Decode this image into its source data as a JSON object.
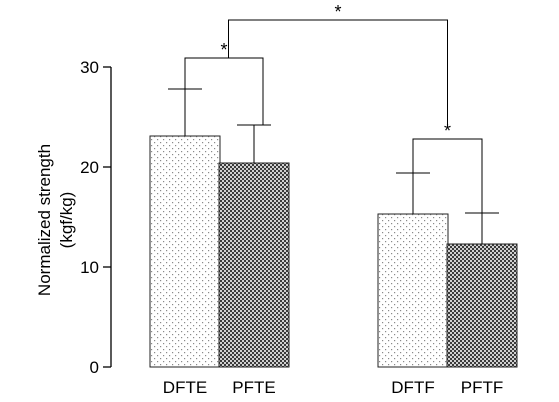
{
  "chart_data": {
    "type": "bar",
    "title": "",
    "ylabel_line1": "Normalized strength",
    "ylabel_line2": "(kgf/kg)",
    "xlabel": "",
    "ylim": [
      0,
      30
    ],
    "yticks": [
      0,
      10,
      20,
      30
    ],
    "grid": false,
    "categories": [
      "DFTE",
      "PFTE",
      "DFTF",
      "PFTF"
    ],
    "values": [
      23.1,
      20.4,
      15.3,
      12.3
    ],
    "errors": [
      4.7,
      3.8,
      4.1,
      3.1
    ],
    "fills": [
      "light-dotted",
      "dark-checkered",
      "light-dotted",
      "dark-checkered"
    ],
    "significance": [
      {
        "from": 0,
        "to": 1,
        "label": "*"
      },
      {
        "from": 2,
        "to": 3,
        "label": "*"
      },
      {
        "from": "DFTE-PFTE",
        "to": "DFTF-PFTF",
        "label": "*"
      }
    ]
  }
}
